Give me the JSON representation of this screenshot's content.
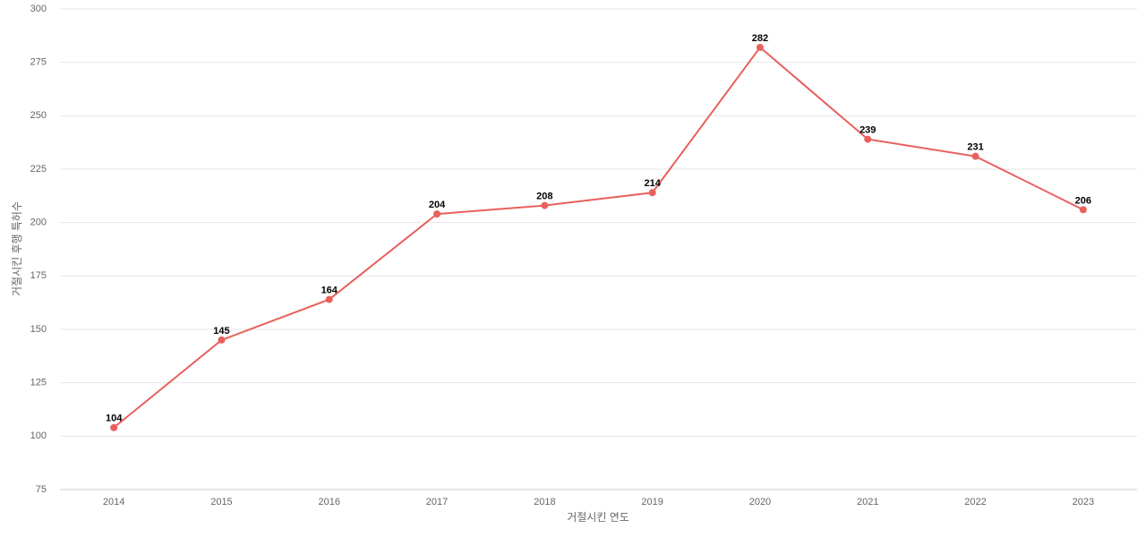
{
  "chart_data": {
    "type": "line",
    "x_label": "거절시킨 연도",
    "y_label": "거절시킨 후행 특허수",
    "categories": [
      "2014",
      "2015",
      "2016",
      "2017",
      "2018",
      "2019",
      "2020",
      "2021",
      "2022",
      "2023"
    ],
    "series": [
      {
        "color": "#e8605c",
        "values": [
          104,
          145,
          164,
          204,
          208,
          214,
          282,
          239,
          231,
          206
        ]
      }
    ],
    "ylim": [
      75,
      300
    ],
    "yticks": [
      75,
      100,
      125,
      150,
      175,
      200,
      225,
      250,
      275,
      300
    ],
    "grid": true
  }
}
